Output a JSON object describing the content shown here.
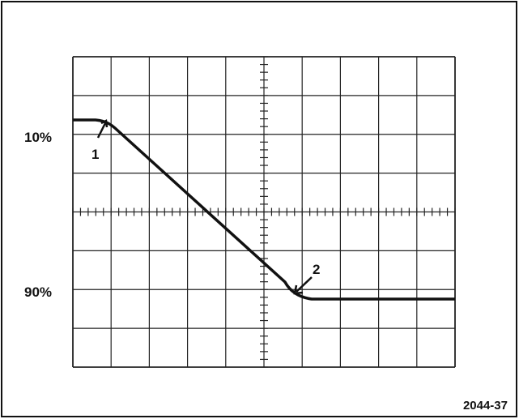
{
  "levels": {
    "upper": "10%",
    "lower": "90%"
  },
  "markers": [
    "1",
    "2"
  ],
  "figure_id": "2044-37"
}
